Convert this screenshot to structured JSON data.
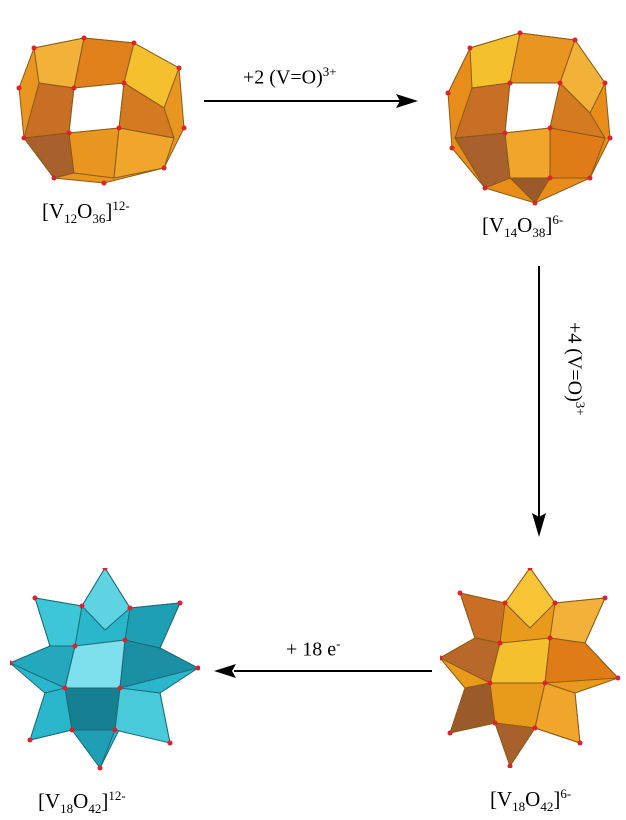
{
  "species": {
    "v12": {
      "name": "[V12O36]12-",
      "base": "[V",
      "sub1": "12",
      "mid": "O",
      "sub2": "36",
      "close": "]",
      "charge": "12-",
      "color": "#e88c1a"
    },
    "v14": {
      "name": "[V14O38]6-",
      "base": "[V",
      "sub1": "14",
      "mid": "O",
      "sub2": "38",
      "close": "]",
      "charge": "6-",
      "color": "#e88c1a"
    },
    "v18_ox": {
      "name": "[V18O42]6-",
      "base": "[V",
      "sub1": "18",
      "mid": "O",
      "sub2": "42",
      "close": "]",
      "charge": "6-",
      "color": "#e89a1a"
    },
    "v18_red": {
      "name": "[V18O42]12-",
      "base": "[V",
      "sub1": "18",
      "mid": "O",
      "sub2": "42",
      "close": "]",
      "charge": "12-",
      "color": "#2ab7cc"
    }
  },
  "steps": {
    "step1": {
      "text": "+2 (V=O)",
      "sup": "3+"
    },
    "step2": {
      "text": "+4 (V=O)",
      "sup": "3+"
    },
    "step3": {
      "text": "+ 18 e",
      "sup": "-"
    }
  }
}
